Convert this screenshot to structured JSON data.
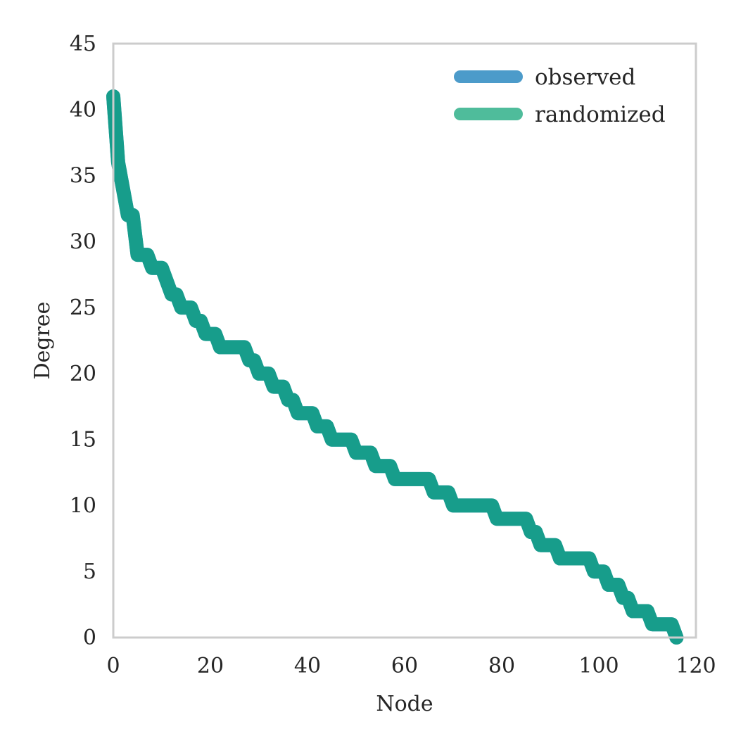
{
  "chart_data": {
    "type": "line",
    "title": "",
    "xlabel": "Node",
    "ylabel": "Degree",
    "xlim": [
      0,
      120
    ],
    "ylim": [
      0,
      45
    ],
    "xticks": [
      0,
      20,
      40,
      60,
      80,
      100,
      120
    ],
    "yticks": [
      0,
      5,
      10,
      15,
      20,
      25,
      30,
      35,
      40,
      45
    ],
    "grid": false,
    "legend_position": "top-right",
    "series": [
      {
        "name": "observed",
        "color": "#4c9bca",
        "x": [
          0,
          1,
          2,
          3,
          4,
          5,
          6,
          7,
          8,
          9,
          10,
          11,
          12,
          13,
          14,
          15,
          16,
          17,
          18,
          19,
          20,
          21,
          22,
          23,
          24,
          25,
          26,
          27,
          28,
          29,
          30,
          31,
          32,
          33,
          34,
          35,
          36,
          37,
          38,
          39,
          40,
          41,
          42,
          43,
          44,
          45,
          46,
          47,
          48,
          49,
          50,
          51,
          52,
          53,
          54,
          55,
          56,
          57,
          58,
          59,
          60,
          61,
          62,
          63,
          64,
          65,
          66,
          67,
          68,
          69,
          70,
          71,
          72,
          73,
          74,
          75,
          76,
          77,
          78,
          79,
          80,
          81,
          82,
          83,
          84,
          85,
          86,
          87,
          88,
          89,
          90,
          91,
          92,
          93,
          94,
          95,
          96,
          97,
          98,
          99,
          100,
          101,
          102,
          103,
          104,
          105,
          106,
          107,
          108,
          109,
          110,
          111,
          112,
          113,
          114,
          115,
          116
        ],
        "y": [
          41,
          36,
          34,
          32,
          32,
          29,
          29,
          29,
          28,
          28,
          28,
          27,
          26,
          26,
          25,
          25,
          25,
          24,
          24,
          23,
          23,
          23,
          22,
          22,
          22,
          22,
          22,
          22,
          21,
          21,
          20,
          20,
          20,
          19,
          19,
          19,
          18,
          18,
          17,
          17,
          17,
          17,
          16,
          16,
          16,
          15,
          15,
          15,
          15,
          15,
          14,
          14,
          14,
          14,
          13,
          13,
          13,
          13,
          12,
          12,
          12,
          12,
          12,
          12,
          12,
          12,
          11,
          11,
          11,
          11,
          10,
          10,
          10,
          10,
          10,
          10,
          10,
          10,
          10,
          9,
          9,
          9,
          9,
          9,
          9,
          9,
          8,
          8,
          7,
          7,
          7,
          7,
          6,
          6,
          6,
          6,
          6,
          6,
          6,
          5,
          5,
          5,
          4,
          4,
          4,
          3,
          3,
          2,
          2,
          2,
          2,
          1,
          1,
          1,
          1,
          1,
          0
        ]
      },
      {
        "name": "randomized",
        "color": "#4fbc9b",
        "x": [
          0,
          1,
          2,
          3,
          4,
          5,
          6,
          7,
          8,
          9,
          10,
          11,
          12,
          13,
          14,
          15,
          16,
          17,
          18,
          19,
          20,
          21,
          22,
          23,
          24,
          25,
          26,
          27,
          28,
          29,
          30,
          31,
          32,
          33,
          34,
          35,
          36,
          37,
          38,
          39,
          40,
          41,
          42,
          43,
          44,
          45,
          46,
          47,
          48,
          49,
          50,
          51,
          52,
          53,
          54,
          55,
          56,
          57,
          58,
          59,
          60,
          61,
          62,
          63,
          64,
          65,
          66,
          67,
          68,
          69,
          70,
          71,
          72,
          73,
          74,
          75,
          76,
          77,
          78,
          79,
          80,
          81,
          82,
          83,
          84,
          85,
          86,
          87,
          88,
          89,
          90,
          91,
          92,
          93,
          94,
          95,
          96,
          97,
          98,
          99,
          100,
          101,
          102,
          103,
          104,
          105,
          106,
          107,
          108,
          109,
          110,
          111,
          112,
          113,
          114,
          115,
          116
        ],
        "y": [
          41,
          36,
          34,
          32,
          32,
          29,
          29,
          29,
          28,
          28,
          28,
          27,
          26,
          26,
          25,
          25,
          25,
          24,
          24,
          23,
          23,
          23,
          22,
          22,
          22,
          22,
          22,
          22,
          21,
          21,
          20,
          20,
          20,
          19,
          19,
          19,
          18,
          18,
          17,
          17,
          17,
          17,
          16,
          16,
          16,
          15,
          15,
          15,
          15,
          15,
          14,
          14,
          14,
          14,
          13,
          13,
          13,
          13,
          12,
          12,
          12,
          12,
          12,
          12,
          12,
          12,
          11,
          11,
          11,
          11,
          10,
          10,
          10,
          10,
          10,
          10,
          10,
          10,
          10,
          9,
          9,
          9,
          9,
          9,
          9,
          9,
          8,
          8,
          7,
          7,
          7,
          7,
          6,
          6,
          6,
          6,
          6,
          6,
          6,
          5,
          5,
          5,
          4,
          4,
          4,
          3,
          3,
          2,
          2,
          2,
          2,
          1,
          1,
          1,
          1,
          1,
          0
        ]
      }
    ],
    "overlap_color": "#179d8b",
    "frame_color": "#cccccc"
  }
}
